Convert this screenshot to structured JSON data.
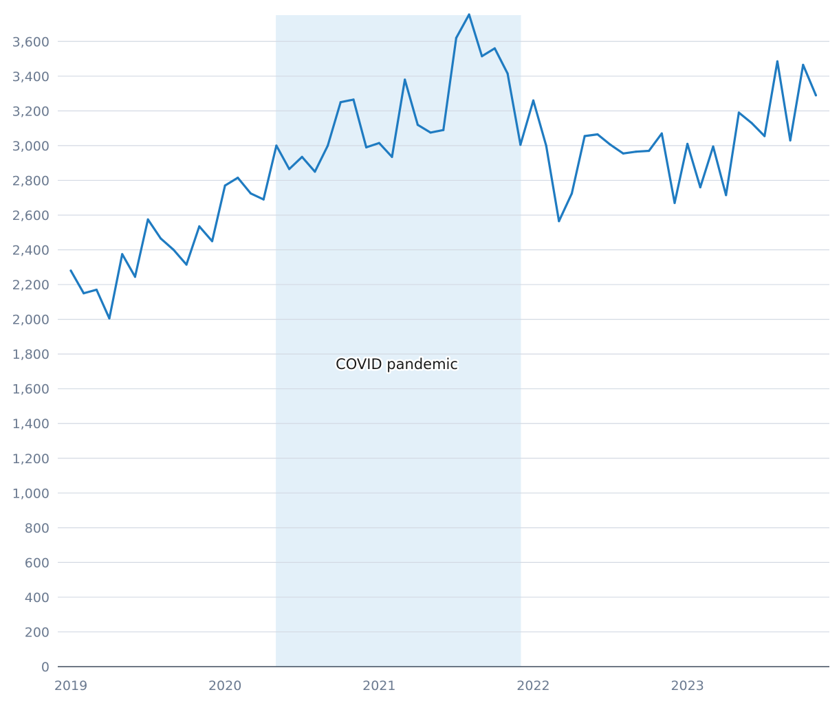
{
  "chart_data": {
    "type": "line",
    "title": "",
    "xlabel": "",
    "ylabel": "",
    "ylim": [
      0,
      3750
    ],
    "yticks": [
      0,
      200,
      400,
      600,
      800,
      1000,
      1200,
      1400,
      1600,
      1800,
      2000,
      2200,
      2400,
      2600,
      2800,
      3000,
      3200,
      3400,
      3600
    ],
    "ytick_labels": [
      "0",
      "200",
      "400",
      "600",
      "800",
      "1,000",
      "1,200",
      "1,400",
      "1,600",
      "1,800",
      "2,000",
      "2,200",
      "2,400",
      "2,600",
      "2,800",
      "3,000",
      "3,200",
      "3,400",
      "3,600"
    ],
    "x_start_year": 2019,
    "xticks": [
      2019,
      2020,
      2021,
      2022,
      2023
    ],
    "xtick_labels": [
      "2019",
      "2020",
      "2021",
      "2022",
      "2023"
    ],
    "grid": "horizontal",
    "line_color": "#1f7bc1",
    "shade_color": "#e3f0f9",
    "series": [
      {
        "name": "",
        "values": [
          2280,
          2150,
          2170,
          2005,
          2375,
          2245,
          2575,
          2465,
          2400,
          2315,
          2535,
          2450,
          2770,
          2815,
          2725,
          2690,
          3000,
          2865,
          2935,
          2850,
          3000,
          3250,
          3265,
          2990,
          3015,
          2935,
          3380,
          3120,
          3075,
          3090,
          3620,
          3755,
          3515,
          3560,
          3415,
          3005,
          3260,
          3000,
          2565,
          2725,
          3055,
          3065,
          3005,
          2955,
          2965,
          2970,
          3070,
          2670,
          3010,
          2760,
          2995,
          2715,
          3190,
          3130,
          3055,
          3485,
          3030,
          3465,
          3290
        ]
      }
    ],
    "annotations": [
      {
        "label": "COVID pandemic",
        "start": 2020.33,
        "end": 2021.92
      }
    ]
  }
}
